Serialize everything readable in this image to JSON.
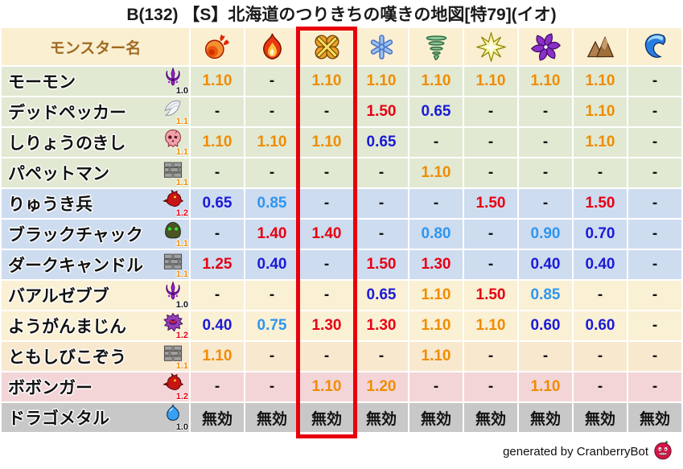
{
  "chart_data": {
    "type": "table",
    "title": "B(132) 【S】北海道のつりきちの嘆きの地図[特79](イオ)",
    "monster_col_label": "モンスター名",
    "element_columns": [
      {
        "icon": "fireball-icon",
        "highlighted": false
      },
      {
        "icon": "flame-icon",
        "highlighted": false
      },
      {
        "icon": "explosion-icon",
        "highlighted": true
      },
      {
        "icon": "snowflake-icon",
        "highlighted": false
      },
      {
        "icon": "tornado-icon",
        "highlighted": false
      },
      {
        "icon": "spark-icon",
        "highlighted": false
      },
      {
        "icon": "pinwheel-icon",
        "highlighted": false
      },
      {
        "icon": "mountain-icon",
        "highlighted": false
      },
      {
        "icon": "wave-icon",
        "highlighted": false
      }
    ],
    "highlighted_column_index": 2,
    "rows": [
      {
        "name": "モーモン",
        "family_icon": "devil-icon",
        "multiplier": "1.0",
        "multiplier_color": "black",
        "bg": "green",
        "values": [
          "1.10",
          "-",
          "1.10",
          "1.10",
          "1.10",
          "1.10",
          "1.10",
          "1.10",
          "-"
        ],
        "value_colors": [
          "orange",
          "black",
          "orange",
          "orange",
          "orange",
          "orange",
          "orange",
          "orange",
          "black"
        ]
      },
      {
        "name": "デッドペッカー",
        "family_icon": "wing-icon",
        "multiplier": "1.1",
        "multiplier_color": "orange",
        "bg": "green",
        "values": [
          "-",
          "-",
          "-",
          "1.50",
          "0.65",
          "-",
          "-",
          "1.10",
          "-"
        ],
        "value_colors": [
          "black",
          "black",
          "black",
          "red",
          "blue",
          "black",
          "black",
          "orange",
          "black"
        ]
      },
      {
        "name": "しりょうのきし",
        "family_icon": "skull-icon",
        "multiplier": "1.1",
        "multiplier_color": "orange",
        "bg": "green",
        "values": [
          "1.10",
          "1.10",
          "1.10",
          "0.65",
          "-",
          "-",
          "-",
          "1.10",
          "-"
        ],
        "value_colors": [
          "orange",
          "orange",
          "orange",
          "blue",
          "black",
          "black",
          "black",
          "orange",
          "black"
        ]
      },
      {
        "name": "パペットマン",
        "family_icon": "bricks-icon",
        "multiplier": "1.1",
        "multiplier_color": "orange",
        "bg": "green",
        "values": [
          "-",
          "-",
          "-",
          "-",
          "1.10",
          "-",
          "-",
          "-",
          "-"
        ],
        "value_colors": [
          "black",
          "black",
          "black",
          "black",
          "orange",
          "black",
          "black",
          "black",
          "black"
        ]
      },
      {
        "name": "りゅうき兵",
        "family_icon": "dragon-icon",
        "multiplier": "1.2",
        "multiplier_color": "red",
        "bg": "blue",
        "values": [
          "0.65",
          "0.85",
          "-",
          "-",
          "-",
          "1.50",
          "-",
          "1.50",
          "-"
        ],
        "value_colors": [
          "blue",
          "lightblue",
          "black",
          "black",
          "black",
          "red",
          "black",
          "red",
          "black"
        ]
      },
      {
        "name": "ブラックチャック",
        "family_icon": "blob-icon",
        "multiplier": "1.1",
        "multiplier_color": "orange",
        "bg": "blue",
        "values": [
          "-",
          "1.40",
          "1.40",
          "-",
          "0.80",
          "-",
          "0.90",
          "0.70",
          "-"
        ],
        "value_colors": [
          "black",
          "red",
          "red",
          "black",
          "lightblue",
          "black",
          "lightblue",
          "blue",
          "black"
        ]
      },
      {
        "name": "ダークキャンドル",
        "family_icon": "bricks-icon",
        "multiplier": "1.1",
        "multiplier_color": "orange",
        "bg": "blue",
        "values": [
          "1.25",
          "0.40",
          "-",
          "1.50",
          "1.30",
          "-",
          "0.40",
          "0.40",
          "-"
        ],
        "value_colors": [
          "red",
          "blue",
          "black",
          "red",
          "red",
          "black",
          "blue",
          "blue",
          "black"
        ]
      },
      {
        "name": "バアルゼブブ",
        "family_icon": "devil-icon",
        "multiplier": "1.0",
        "multiplier_color": "black",
        "bg": "cream",
        "values": [
          "-",
          "-",
          "-",
          "0.65",
          "1.10",
          "1.50",
          "0.85",
          "-",
          "-"
        ],
        "value_colors": [
          "black",
          "black",
          "black",
          "blue",
          "orange",
          "red",
          "lightblue",
          "black",
          "black"
        ]
      },
      {
        "name": "ようがんまじん",
        "family_icon": "purple-monster-icon",
        "multiplier": "1.2",
        "multiplier_color": "red",
        "bg": "cream",
        "values": [
          "0.40",
          "0.75",
          "1.30",
          "1.30",
          "1.10",
          "1.10",
          "0.60",
          "0.60",
          "-"
        ],
        "value_colors": [
          "blue",
          "lightblue",
          "red",
          "red",
          "orange",
          "orange",
          "blue",
          "blue",
          "black"
        ]
      },
      {
        "name": "ともしびこぞう",
        "family_icon": "bricks-icon",
        "multiplier": "1.1",
        "multiplier_color": "orange",
        "bg": "tan",
        "values": [
          "1.10",
          "-",
          "-",
          "-",
          "1.10",
          "-",
          "-",
          "-",
          "-"
        ],
        "value_colors": [
          "orange",
          "black",
          "black",
          "black",
          "orange",
          "black",
          "black",
          "black",
          "black"
        ]
      },
      {
        "name": "ボボンガー",
        "family_icon": "dragon-icon",
        "multiplier": "1.2",
        "multiplier_color": "red",
        "bg": "pink",
        "values": [
          "-",
          "-",
          "1.10",
          "1.20",
          "-",
          "-",
          "1.10",
          "-",
          "-"
        ],
        "value_colors": [
          "black",
          "black",
          "orange",
          "orange",
          "black",
          "black",
          "orange",
          "black",
          "black"
        ]
      },
      {
        "name": "ドラゴメタル",
        "family_icon": "slime-icon",
        "multiplier": "1.0",
        "multiplier_color": "black",
        "bg": "grey",
        "values": [
          "無効",
          "無効",
          "無効",
          "無効",
          "無効",
          "無効",
          "無効",
          "無効",
          "無効"
        ],
        "value_colors": [
          "black",
          "black",
          "black",
          "black",
          "black",
          "black",
          "black",
          "black",
          "black"
        ]
      }
    ]
  },
  "footer": {
    "credit": "generated by CranberryBot",
    "icon": "cranberry-icon"
  },
  "colors": {
    "value_orange": "#F08C00",
    "value_red": "#E60012",
    "value_blue": "#1A1AD8",
    "value_lightblue": "#2E96F0",
    "value_black": "#111111",
    "row_green": "#E1E9D3",
    "row_blue": "#CEDCF0",
    "row_cream": "#FAF0D3",
    "row_tan": "#F8E8CE",
    "row_pink": "#F3D5D8",
    "row_grey": "#C8C8C8",
    "header_bg": "#FAEFD1",
    "header_text": "#A06B22",
    "highlight_border": "#E8000D"
  }
}
